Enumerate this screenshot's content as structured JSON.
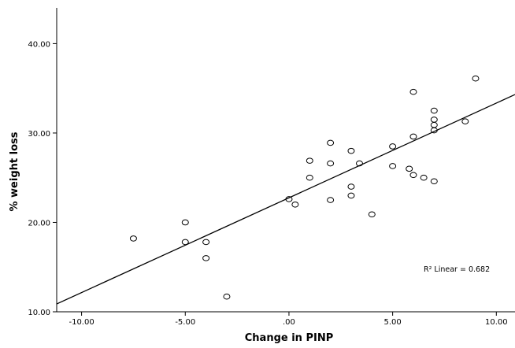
{
  "chart_data": {
    "type": "scatter",
    "title": "",
    "xlabel": "Change in PINP",
    "ylabel": "% weight loss",
    "xlim": [
      -11.2,
      10.9
    ],
    "ylim": [
      10,
      44
    ],
    "x_ticks": [
      -10,
      -5,
      0,
      5,
      10
    ],
    "x_tick_labels": [
      "-10.00",
      "-5.00",
      ".00",
      "5.00",
      "10.00"
    ],
    "y_ticks": [
      10,
      20,
      30,
      40
    ],
    "y_tick_labels": [
      "10.00",
      "20.00",
      "30.00",
      "40.00"
    ],
    "grid": false,
    "legend": "none",
    "points": [
      {
        "x": -7.5,
        "y": 18.2
      },
      {
        "x": -5.0,
        "y": 20.0
      },
      {
        "x": -5.0,
        "y": 17.8
      },
      {
        "x": -4.0,
        "y": 17.8
      },
      {
        "x": -4.0,
        "y": 16.0
      },
      {
        "x": -3.0,
        "y": 11.7
      },
      {
        "x": 0.0,
        "y": 22.6
      },
      {
        "x": 0.3,
        "y": 22.0
      },
      {
        "x": 1.0,
        "y": 26.9
      },
      {
        "x": 1.0,
        "y": 25.0
      },
      {
        "x": 2.0,
        "y": 28.9
      },
      {
        "x": 2.0,
        "y": 26.6
      },
      {
        "x": 2.0,
        "y": 22.5
      },
      {
        "x": 3.0,
        "y": 28.0
      },
      {
        "x": 3.0,
        "y": 24.0
      },
      {
        "x": 3.0,
        "y": 23.0
      },
      {
        "x": 3.4,
        "y": 26.6
      },
      {
        "x": 4.0,
        "y": 20.9
      },
      {
        "x": 5.0,
        "y": 28.5
      },
      {
        "x": 5.0,
        "y": 26.3
      },
      {
        "x": 5.8,
        "y": 26.0
      },
      {
        "x": 6.0,
        "y": 34.6
      },
      {
        "x": 6.0,
        "y": 29.6
      },
      {
        "x": 6.0,
        "y": 25.3
      },
      {
        "x": 6.5,
        "y": 25.0
      },
      {
        "x": 7.0,
        "y": 32.5
      },
      {
        "x": 7.0,
        "y": 31.5
      },
      {
        "x": 7.0,
        "y": 30.9
      },
      {
        "x": 7.0,
        "y": 30.3
      },
      {
        "x": 7.0,
        "y": 24.6
      },
      {
        "x": 8.5,
        "y": 31.3
      },
      {
        "x": 9.0,
        "y": 36.1
      }
    ],
    "fit_line": {
      "intercept": 22.75,
      "slope": 1.06
    },
    "annotation": "R² Linear = 0.682",
    "colors": {
      "marker": "#000000",
      "line": "#000000",
      "background": "#ffffff"
    }
  }
}
